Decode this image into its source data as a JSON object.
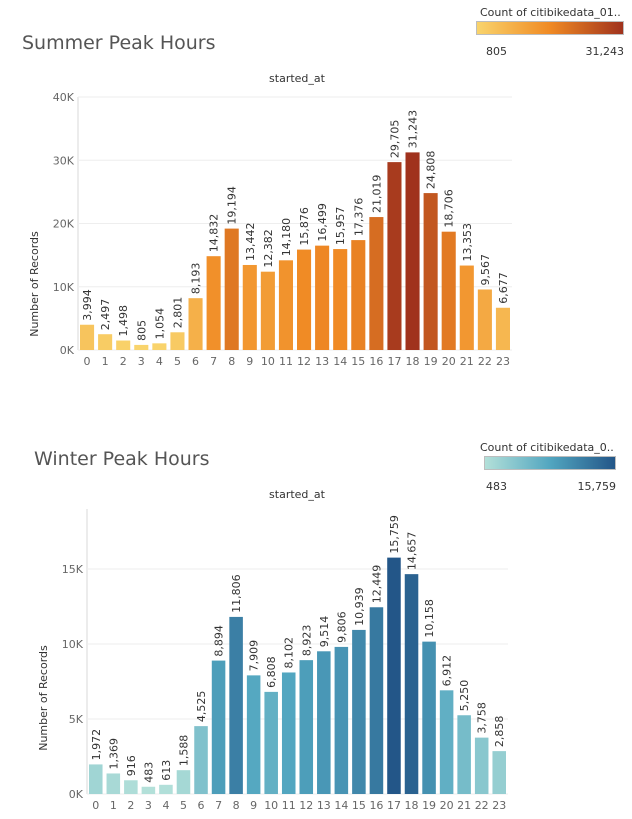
{
  "chart_data": [
    {
      "type": "bar",
      "title": "Summer Peak Hours",
      "column_header": "started_at",
      "ylabel": "Number of Records",
      "xlabel": "",
      "ylim": [
        0,
        40000
      ],
      "yticks": [
        0,
        10000,
        20000,
        30000,
        40000
      ],
      "ytick_labels": [
        "0K",
        "10K",
        "20K",
        "30K",
        "40K"
      ],
      "categories": [
        "0",
        "1",
        "2",
        "3",
        "4",
        "5",
        "6",
        "7",
        "8",
        "9",
        "10",
        "11",
        "12",
        "13",
        "14",
        "15",
        "16",
        "17",
        "18",
        "19",
        "20",
        "21",
        "22",
        "23"
      ],
      "values": [
        3994,
        2497,
        1498,
        805,
        1054,
        2801,
        8193,
        14832,
        19194,
        13442,
        12382,
        14180,
        15876,
        16499,
        15957,
        17376,
        21019,
        29705,
        31243,
        24808,
        18706,
        13353,
        9567,
        6677
      ],
      "value_labels": [
        "3,994",
        "2,497",
        "1,498",
        "805",
        "1,054",
        "2,801",
        "8,193",
        "14,832",
        "19,194",
        "13,442",
        "12,382",
        "14,180",
        "15,876",
        "16,499",
        "15,957",
        "17,376",
        "21,019",
        "29,705",
        "31,243",
        "24,808",
        "18,706",
        "13,353",
        "9,567",
        "6,677"
      ],
      "legend": {
        "title": "Count of citibikedata_01..",
        "min_label": "805",
        "max_label": "31,243",
        "min": 805,
        "max": 31243,
        "colors": [
          "#f9d46c",
          "#f08a24",
          "#a0321d"
        ],
        "placement": "top-right"
      },
      "grid": true
    },
    {
      "type": "bar",
      "title": "Winter Peak Hours",
      "column_header": "started_at",
      "ylabel": "Number of Records",
      "xlabel": "",
      "ylim": [
        0,
        19000
      ],
      "yticks": [
        0,
        5000,
        10000,
        15000
      ],
      "ytick_labels": [
        "0K",
        "5K",
        "10K",
        "15K"
      ],
      "categories": [
        "0",
        "1",
        "2",
        "3",
        "4",
        "5",
        "6",
        "7",
        "8",
        "9",
        "10",
        "11",
        "12",
        "13",
        "14",
        "15",
        "16",
        "17",
        "18",
        "19",
        "20",
        "21",
        "22",
        "23"
      ],
      "values": [
        1972,
        1369,
        916,
        483,
        613,
        1588,
        4525,
        8894,
        11806,
        7909,
        6808,
        8102,
        8923,
        9514,
        9806,
        10939,
        12449,
        15759,
        14657,
        10158,
        6912,
        5250,
        3758,
        2858
      ],
      "value_labels": [
        "1,972",
        "1,369",
        "916",
        "483",
        "613",
        "1,588",
        "4,525",
        "8,894",
        "11,806",
        "7,909",
        "6,808",
        "8,102",
        "8,923",
        "9,514",
        "9,806",
        "10,939",
        "12,449",
        "15,759",
        "14,657",
        "10,158",
        "6,912",
        "5,250",
        "3,758",
        "2,858"
      ],
      "legend": {
        "title": "Count of citibikedata_0..",
        "min_label": "483",
        "max_label": "15,759",
        "min": 483,
        "max": 15759,
        "colors": [
          "#b3e0d9",
          "#52a6c0",
          "#235688"
        ],
        "placement": "top-right"
      },
      "grid": true
    }
  ]
}
